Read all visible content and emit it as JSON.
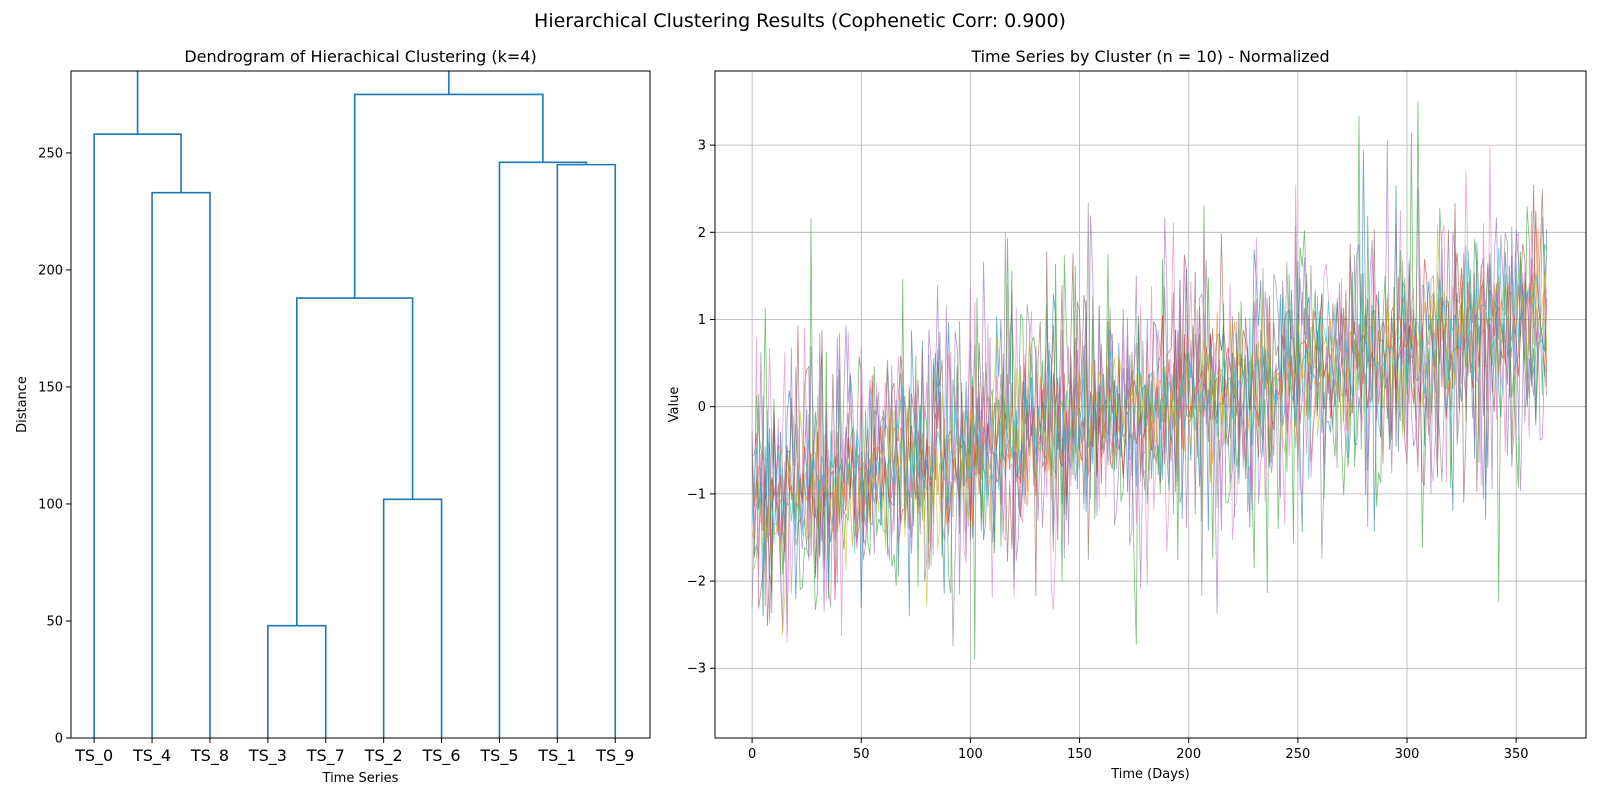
{
  "figure": {
    "suptitle": "Hierarchical Clustering Results (Cophenetic Corr: 0.900)"
  },
  "chart_data": [
    {
      "type": "dendrogram",
      "title": "Dendrogram of Hierachical Clustering (k=4)",
      "xlabel": "Time Series",
      "ylabel": "Distance",
      "ylim": [
        0,
        285
      ],
      "yticks": [
        0,
        50,
        100,
        150,
        200,
        250
      ],
      "leaves": [
        "TS_0",
        "TS_4",
        "TS_8",
        "TS_3",
        "TS_7",
        "TS_2",
        "TS_6",
        "TS_5",
        "TS_1",
        "TS_9"
      ],
      "link_color": "#1f77b4",
      "links": [
        {
          "left": [
            4,
            0
          ],
          "right": [
            5,
            0
          ],
          "height": 48
        },
        {
          "left": [
            6,
            0
          ],
          "right": [
            7,
            0
          ],
          "height": 102
        },
        {
          "left": [
            4.5,
            48
          ],
          "right": [
            6.5,
            102
          ],
          "height": 188
        },
        {
          "left": [
            2,
            0
          ],
          "right": [
            3,
            0
          ],
          "height": 233
        },
        {
          "left": [
            9,
            0
          ],
          "right": [
            10,
            0
          ],
          "height": 245
        },
        {
          "left": [
            8,
            0
          ],
          "right": [
            9.5,
            245
          ],
          "height": 246
        },
        {
          "left": [
            1,
            0
          ],
          "right": [
            2.5,
            233
          ],
          "height": 258
        },
        {
          "left": [
            5.5,
            188
          ],
          "right": [
            8.75,
            246
          ],
          "height": 275
        }
      ],
      "top_stubs": [
        {
          "x": 1.75,
          "from": 258
        },
        {
          "x": 7.125,
          "from": 275
        }
      ]
    },
    {
      "type": "line",
      "title": "Time Series by Cluster (n = 10) - Normalized",
      "xlabel": "Time (Days)",
      "ylabel": "Value",
      "xlim": [
        -17,
        382
      ],
      "ylim": [
        -3.8,
        3.85
      ],
      "xticks": [
        0,
        50,
        100,
        150,
        200,
        250,
        300,
        350
      ],
      "yticks": [
        -3,
        -2,
        -1,
        0,
        1,
        2,
        3
      ],
      "grid": true,
      "n_points": 365,
      "series_colors": [
        "#1f77b4",
        "#ff7f0e",
        "#2ca02c",
        "#d62728",
        "#9467bd",
        "#8c564b",
        "#e377c2",
        "#7f7f7f",
        "#bcbd22",
        "#17becf"
      ],
      "series_noise": [
        0.75,
        0.35,
        1.0,
        0.4,
        0.9,
        0.7,
        0.85,
        0.75,
        0.4,
        0.4
      ]
    }
  ]
}
